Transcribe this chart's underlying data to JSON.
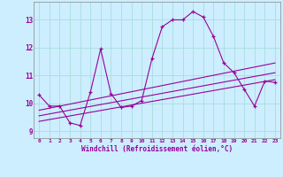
{
  "x": [
    0,
    1,
    2,
    3,
    4,
    5,
    6,
    7,
    8,
    9,
    10,
    11,
    12,
    13,
    14,
    15,
    16,
    17,
    18,
    19,
    20,
    21,
    22,
    23
  ],
  "y_main": [
    10.3,
    9.9,
    9.9,
    9.3,
    9.2,
    10.4,
    11.95,
    10.35,
    9.85,
    9.9,
    10.1,
    11.6,
    12.75,
    13.0,
    13.0,
    13.3,
    13.1,
    12.4,
    11.45,
    11.1,
    10.5,
    9.9,
    10.8,
    10.75
  ],
  "trend1_x": [
    0,
    23
  ],
  "trend1_y": [
    9.75,
    11.45
  ],
  "trend2_x": [
    0,
    23
  ],
  "trend2_y": [
    9.35,
    10.85
  ],
  "trend3_x": [
    0,
    23
  ],
  "trend3_y": [
    9.55,
    11.1
  ],
  "line_color": "#990099",
  "bg_color": "#cceeff",
  "grid_color": "#aadddd",
  "xlabel": "Windchill (Refroidissement éolien,°C)",
  "xlim": [
    -0.5,
    23.5
  ],
  "ylim": [
    8.75,
    13.65
  ],
  "yticks": [
    9,
    10,
    11,
    12,
    13
  ],
  "xticks": [
    0,
    1,
    2,
    3,
    4,
    5,
    6,
    7,
    8,
    9,
    10,
    11,
    12,
    13,
    14,
    15,
    16,
    17,
    18,
    19,
    20,
    21,
    22,
    23
  ]
}
